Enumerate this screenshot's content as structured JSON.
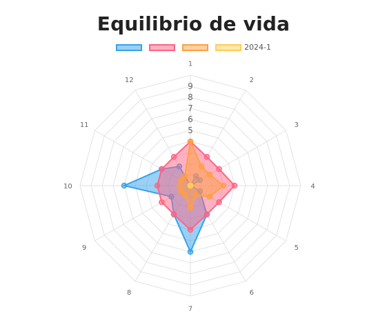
{
  "chart_data": {
    "type": "radar",
    "title": "Equilibrio de vida",
    "labels": [
      "1",
      "2",
      "3",
      "4",
      "5",
      "6",
      "7",
      "8",
      "9",
      "10",
      "11",
      "12"
    ],
    "r_ticks": [
      "5",
      "6",
      "7",
      "8",
      "9"
    ],
    "r_range": [
      0,
      10
    ],
    "grid": true,
    "legend_position": "top",
    "series": [
      {
        "name": "",
        "values": [
          0,
          1,
          1,
          0,
          1,
          3,
          6,
          3,
          2,
          6,
          3,
          2
        ],
        "color": "#36a2eb",
        "fill": "rgba(54,162,235,0.5)"
      },
      {
        "name": "",
        "values": [
          4,
          3,
          3,
          4,
          3,
          3,
          4,
          3,
          3,
          3,
          3,
          3
        ],
        "color": "#ff6384",
        "fill": "rgba(255,99,132,0.5)"
      },
      {
        "name": "",
        "values": [
          4,
          2,
          2,
          3,
          2,
          1,
          2,
          1,
          1,
          1,
          1,
          1
        ],
        "color": "#ff9f40",
        "fill": "rgba(255,159,64,0.5)"
      },
      {
        "name": "2024-1",
        "values": [
          0,
          0,
          0,
          0,
          0,
          0,
          0,
          0,
          0,
          0,
          0,
          0
        ],
        "color": "#ffcd56",
        "fill": "rgba(255,205,86,0.5)"
      }
    ]
  }
}
